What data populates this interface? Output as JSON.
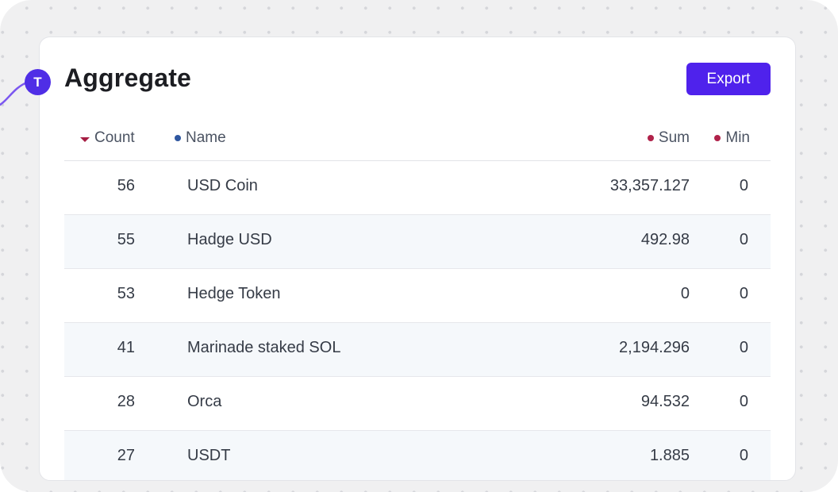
{
  "panel": {
    "badge_letter": "T",
    "title": "Aggregate",
    "export_label": "Export"
  },
  "table": {
    "columns": [
      {
        "label": "Count",
        "marker": "sort-desc-caret-icon",
        "color": "#a51d43"
      },
      {
        "label": "Name",
        "marker": "dot-icon",
        "color": "#2f57a0"
      },
      {
        "label": "Sum",
        "marker": "dot-icon",
        "color": "#b0224a"
      },
      {
        "label": "Min",
        "marker": "dot-icon",
        "color": "#b0224a"
      }
    ],
    "rows": [
      {
        "count": "56",
        "name": "USD Coin",
        "sum": "33,357.127",
        "min": "0"
      },
      {
        "count": "55",
        "name": "Hadge USD",
        "sum": "492.98",
        "min": "0"
      },
      {
        "count": "53",
        "name": "Hedge Token",
        "sum": "0",
        "min": "0"
      },
      {
        "count": "41",
        "name": "Marinade staked SOL",
        "sum": "2,194.296",
        "min": "0"
      },
      {
        "count": "28",
        "name": "Orca",
        "sum": "94.532",
        "min": "0"
      },
      {
        "count": "27",
        "name": "USDT",
        "sum": "1.885",
        "min": "0"
      }
    ]
  },
  "colors": {
    "accent": "#4f22ec",
    "badge": "#4f2ee6",
    "row_alt": "#f5f8fb"
  }
}
